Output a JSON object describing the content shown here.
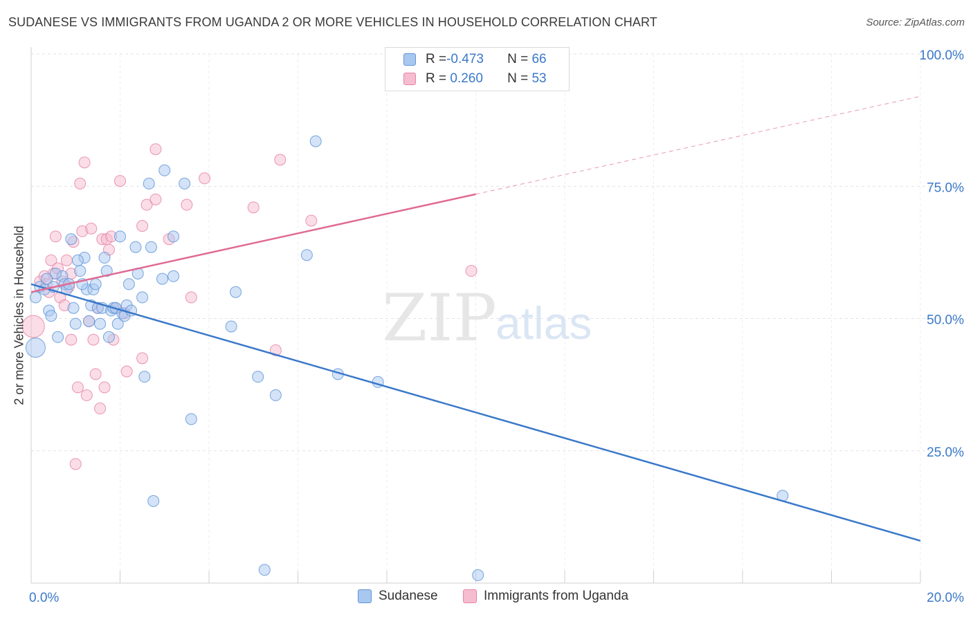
{
  "header": {
    "title": "SUDANESE VS IMMIGRANTS FROM UGANDA 2 OR MORE VEHICLES IN HOUSEHOLD CORRELATION CHART",
    "source": "Source: ZipAtlas.com"
  },
  "watermark": {
    "zip": "ZIP",
    "atlas": "atlas"
  },
  "legend": {
    "rows": [
      {
        "r_label": "R = ",
        "r_value": "-0.473",
        "n_label": "N = ",
        "n_value": "66"
      },
      {
        "r_label": "R = ",
        "r_value": " 0.260",
        "n_label": "N = ",
        "n_value": "53"
      }
    ]
  },
  "colors": {
    "sudanese_fill": "#a9c8ef",
    "sudanese_stroke": "#5e95d8",
    "sudanese_line": "#3a78c9",
    "uganda_fill": "#f6bcd0",
    "uganda_stroke": "#e883a6",
    "uganda_line": "#e06b94",
    "axis_label": "#3a78c9",
    "grid": "#e2e2e2"
  },
  "chart_data": {
    "type": "scatter",
    "title": "SUDANESE VS IMMIGRANTS FROM UGANDA 2 OR MORE VEHICLES IN HOUSEHOLD CORRELATION CHART",
    "xlabel": "",
    "ylabel": "2 or more Vehicles in Household",
    "xlim": [
      0,
      20
    ],
    "ylim": [
      0,
      100
    ],
    "x_ticks": [
      "0.0%",
      "20.0%"
    ],
    "y_ticks": [
      {
        "value": 100,
        "label": "100.0%"
      },
      {
        "value": 75,
        "label": "75.0%"
      },
      {
        "value": 50,
        "label": "50.0%"
      },
      {
        "value": 25,
        "label": "25.0%"
      }
    ],
    "grid": true,
    "legend_position": "bottom",
    "series": [
      {
        "name": "Sudanese",
        "r": -0.473,
        "n": 66,
        "trend": {
          "x": [
            0,
            20
          ],
          "y": [
            56.5,
            8
          ]
        },
        "points": [
          [
            0.1,
            44.5,
            14
          ],
          [
            0.1,
            54,
            8
          ],
          [
            0.2,
            56,
            8
          ],
          [
            0.3,
            55.5,
            8
          ],
          [
            0.4,
            51.5,
            8
          ],
          [
            0.45,
            50.5,
            8
          ],
          [
            0.5,
            56,
            8
          ],
          [
            0.6,
            46.5,
            8
          ],
          [
            0.7,
            58,
            8
          ],
          [
            0.75,
            56.5,
            8
          ],
          [
            0.8,
            55.5,
            8
          ],
          [
            0.85,
            56.5,
            8
          ],
          [
            0.9,
            65,
            8
          ],
          [
            0.95,
            52,
            8
          ],
          [
            1.0,
            49,
            8
          ],
          [
            1.1,
            59,
            8
          ],
          [
            1.2,
            61.5,
            8
          ],
          [
            1.25,
            55.5,
            8
          ],
          [
            1.3,
            49.5,
            8
          ],
          [
            1.35,
            52.5,
            8
          ],
          [
            1.4,
            55.5,
            8
          ],
          [
            1.45,
            56.5,
            8
          ],
          [
            1.5,
            52,
            8
          ],
          [
            1.55,
            49,
            8
          ],
          [
            1.6,
            52,
            8
          ],
          [
            1.65,
            61.5,
            8
          ],
          [
            1.7,
            59,
            8
          ],
          [
            1.75,
            46.5,
            8
          ],
          [
            1.8,
            51.5,
            8
          ],
          [
            1.85,
            52,
            8
          ],
          [
            1.9,
            52,
            8
          ],
          [
            1.95,
            49,
            8
          ],
          [
            2.0,
            65.5,
            8
          ],
          [
            2.05,
            51,
            8
          ],
          [
            2.1,
            50.5,
            8
          ],
          [
            2.15,
            52.5,
            8
          ],
          [
            2.2,
            56.5,
            8
          ],
          [
            2.35,
            63.5,
            8
          ],
          [
            2.4,
            58.5,
            8
          ],
          [
            2.5,
            54,
            8
          ],
          [
            2.55,
            39,
            8
          ],
          [
            2.65,
            75.5,
            8
          ],
          [
            2.7,
            63.5,
            8
          ],
          [
            2.75,
            15.5,
            8
          ],
          [
            2.95,
            57.5,
            8
          ],
          [
            3.0,
            78,
            8
          ],
          [
            3.2,
            58,
            8
          ],
          [
            3.2,
            65.5,
            8
          ],
          [
            3.45,
            75.5,
            8
          ],
          [
            3.6,
            31,
            8
          ],
          [
            4.5,
            48.5,
            8
          ],
          [
            4.6,
            55,
            8
          ],
          [
            5.1,
            39,
            8
          ],
          [
            5.25,
            2.5,
            8
          ],
          [
            5.5,
            35.5,
            8
          ],
          [
            6.2,
            62,
            8
          ],
          [
            6.4,
            83.5,
            8
          ],
          [
            6.9,
            39.5,
            8
          ],
          [
            7.8,
            38,
            8
          ],
          [
            10.05,
            1.5,
            8
          ],
          [
            16.9,
            16.5,
            8
          ],
          [
            0.55,
            58.5,
            8
          ],
          [
            1.05,
            61,
            8
          ],
          [
            0.35,
            57.5,
            8
          ],
          [
            2.25,
            51.5,
            8
          ],
          [
            1.15,
            56.5,
            8
          ]
        ]
      },
      {
        "name": "Immigrants from Uganda",
        "r": 0.26,
        "n": 53,
        "trend": {
          "x": [
            0,
            10,
            20
          ],
          "y": [
            55,
            73.5,
            92
          ]
        },
        "points": [
          [
            0.05,
            48.5,
            16
          ],
          [
            0.2,
            57,
            8
          ],
          [
            0.3,
            58,
            8
          ],
          [
            0.35,
            56.5,
            8
          ],
          [
            0.4,
            55,
            8
          ],
          [
            0.45,
            61,
            8
          ],
          [
            0.5,
            58.5,
            8
          ],
          [
            0.55,
            65.5,
            8
          ],
          [
            0.6,
            59.5,
            8
          ],
          [
            0.65,
            54,
            8
          ],
          [
            0.7,
            57,
            8
          ],
          [
            0.75,
            52.5,
            8
          ],
          [
            0.8,
            61,
            8
          ],
          [
            0.85,
            56,
            8
          ],
          [
            0.9,
            46,
            8
          ],
          [
            0.95,
            64.5,
            8
          ],
          [
            1.0,
            22.5,
            8
          ],
          [
            1.05,
            37,
            8
          ],
          [
            1.1,
            75.5,
            8
          ],
          [
            1.15,
            66.5,
            8
          ],
          [
            1.2,
            79.5,
            8
          ],
          [
            1.25,
            35.5,
            8
          ],
          [
            1.3,
            49.5,
            8
          ],
          [
            1.35,
            67,
            8
          ],
          [
            1.4,
            46,
            8
          ],
          [
            1.45,
            39.5,
            8
          ],
          [
            1.5,
            52,
            8
          ],
          [
            1.55,
            33,
            8
          ],
          [
            1.6,
            65,
            8
          ],
          [
            1.65,
            37,
            8
          ],
          [
            1.7,
            65,
            8
          ],
          [
            1.75,
            63,
            8
          ],
          [
            1.8,
            65.5,
            8
          ],
          [
            1.85,
            46,
            8
          ],
          [
            1.9,
            52,
            8
          ],
          [
            2.0,
            76,
            8
          ],
          [
            2.1,
            51,
            8
          ],
          [
            2.15,
            40,
            8
          ],
          [
            2.5,
            67.5,
            8
          ],
          [
            2.5,
            42.5,
            8
          ],
          [
            2.6,
            71.5,
            8
          ],
          [
            2.8,
            72.5,
            8
          ],
          [
            2.8,
            82,
            8
          ],
          [
            3.1,
            65,
            8
          ],
          [
            3.5,
            71.5,
            8
          ],
          [
            3.6,
            54,
            8
          ],
          [
            3.9,
            76.5,
            8
          ],
          [
            5.0,
            71,
            8
          ],
          [
            5.5,
            44,
            8
          ],
          [
            5.6,
            80,
            8
          ],
          [
            6.3,
            68.5,
            8
          ],
          [
            9.9,
            59,
            8
          ],
          [
            0.9,
            58.5,
            8
          ]
        ]
      }
    ]
  }
}
